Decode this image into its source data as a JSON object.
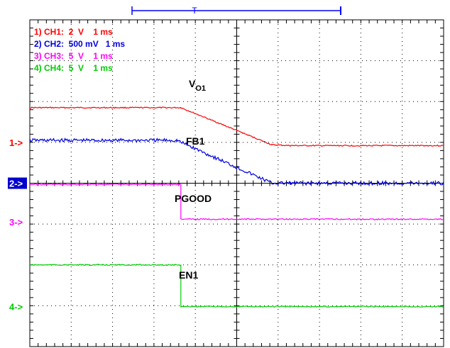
{
  "chart_data": {
    "type": "line",
    "title": "",
    "xlabel": "",
    "ylabel": "",
    "grid": true,
    "divisions": {
      "x": 10,
      "y": 8
    },
    "legend_placement": "top-left",
    "trigger_marker": "T",
    "channels": [
      {
        "id": "ch1",
        "legend": "1) CH1:  2  V    1 ms",
        "marker": "1->",
        "trace_label": "V",
        "trace_label_sub": "O1",
        "color": "#ff0000",
        "points": [
          [
            0,
            5.85
          ],
          [
            3.65,
            5.85
          ],
          [
            5.85,
            4.94
          ],
          [
            6.3,
            4.92
          ],
          [
            10,
            4.92
          ]
        ]
      },
      {
        "id": "ch2",
        "legend": "2) CH2:  500 mV   1 ms",
        "marker": "2->",
        "trace_label": "FB1",
        "color": "#0000dd",
        "points": [
          [
            0,
            5.05
          ],
          [
            3.55,
            5.05
          ],
          [
            5.85,
            4.0
          ],
          [
            6.3,
            4.0
          ],
          [
            10,
            4.0
          ]
        ]
      },
      {
        "id": "ch3",
        "legend": "3) CH3:  5  V    1 ms",
        "marker": "3->",
        "trace_label": "PGOOD",
        "color": "#ff00ff",
        "points": [
          [
            0,
            3.97
          ],
          [
            3.65,
            3.97
          ],
          [
            3.65,
            3.12
          ],
          [
            10,
            3.12
          ]
        ]
      },
      {
        "id": "ch4",
        "legend": "4) CH4:  5  V    1 ms",
        "marker": "4->",
        "trace_label": "EN1",
        "color": "#00cc00",
        "points": [
          [
            0,
            2.0
          ],
          [
            3.65,
            2.0
          ],
          [
            3.65,
            0.98
          ],
          [
            10,
            0.98
          ]
        ]
      }
    ],
    "colors": {
      "grid": "#000000",
      "marker_bg": "#0000cc",
      "marker_fg": "#ffffff",
      "trigger_bar": "#0000ff"
    }
  }
}
